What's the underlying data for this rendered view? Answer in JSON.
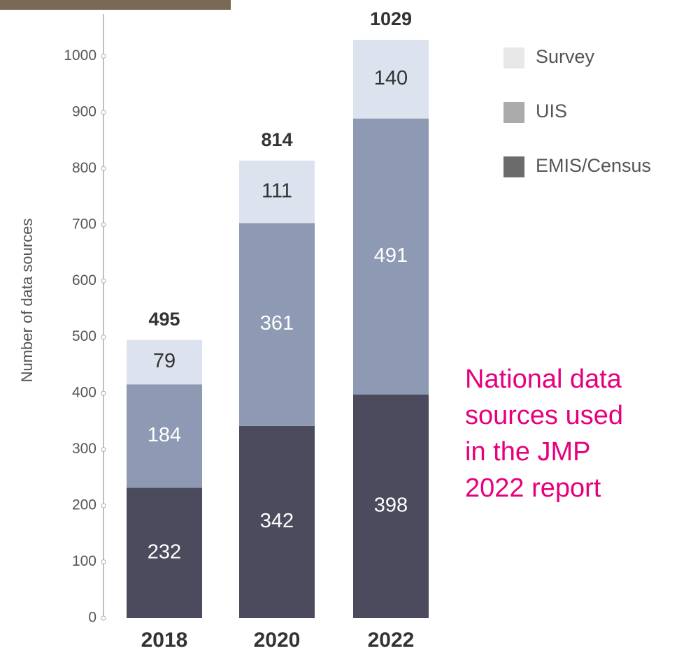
{
  "chart_data": {
    "type": "stacked_bar",
    "y_label": "Number of data sources",
    "categories": [
      "2018",
      "2020",
      "2022"
    ],
    "series": [
      {
        "name": "EMIS/Census",
        "color": "#4b4b5d",
        "legend_color": "#6b6b6b",
        "values": [
          232,
          342,
          398
        ]
      },
      {
        "name": "UIS",
        "color": "#8e9ab3",
        "legend_color": "#ababab",
        "values": [
          184,
          361,
          491
        ]
      },
      {
        "name": "Survey",
        "color": "#dde2ef",
        "legend_color": "#e8e8e8",
        "values": [
          79,
          111,
          140
        ]
      }
    ],
    "totals": [
      495,
      814,
      1029
    ],
    "ylim": [
      0,
      1075
    ],
    "yticks": [
      0,
      100,
      200,
      300,
      400,
      500,
      600,
      700,
      800,
      900,
      1000
    ],
    "annotation": [
      "National data",
      "sources used",
      "in the JMP",
      "2022 report"
    ],
    "annotation_color": "#e6007e"
  }
}
